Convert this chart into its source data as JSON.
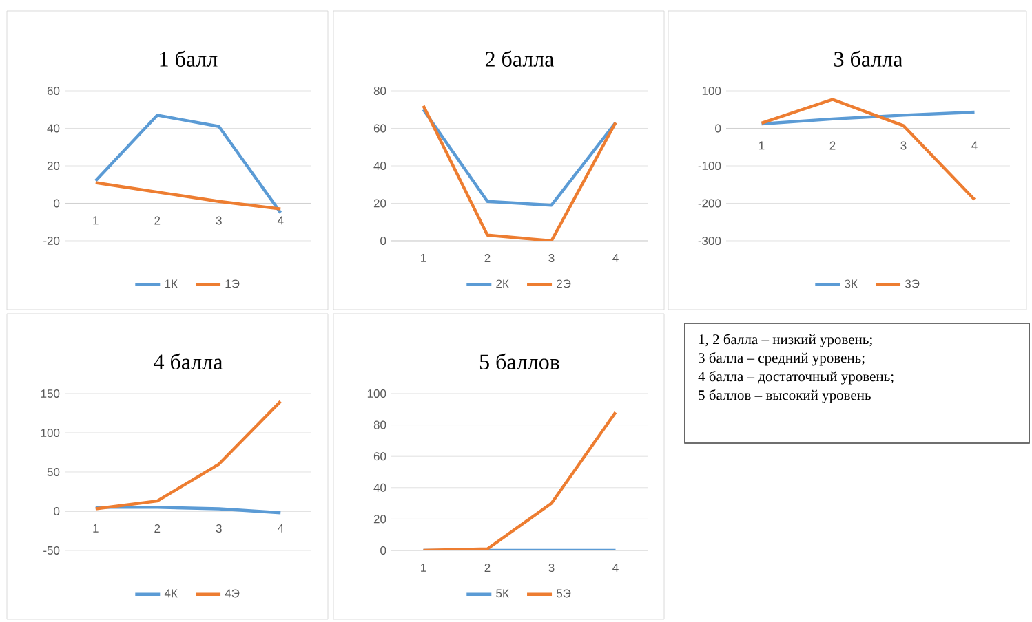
{
  "chart_data": [
    {
      "type": "line",
      "title": "1 балл",
      "categories": [
        "1",
        "2",
        "3",
        "4"
      ],
      "ylim": [
        -20,
        60
      ],
      "yticks": [
        -20,
        0,
        20,
        40,
        60
      ],
      "grid": "y",
      "legend": "bottom",
      "line_style": "solid",
      "series": [
        {
          "name": "1К",
          "color": "#5b9bd5",
          "values": [
            12,
            47,
            41,
            -5
          ]
        },
        {
          "name": "1Э",
          "color": "#ed7d31",
          "values": [
            11,
            6,
            1,
            -3
          ]
        }
      ]
    },
    {
      "type": "line",
      "title": "2 балла",
      "categories": [
        "1",
        "2",
        "3",
        "4"
      ],
      "ylim": [
        0,
        80
      ],
      "yticks": [
        0,
        20,
        40,
        60,
        80
      ],
      "grid": "y",
      "legend": "bottom",
      "line_style": "solid",
      "series": [
        {
          "name": "2К",
          "color": "#5b9bd5",
          "values": [
            70,
            21,
            19,
            63
          ]
        },
        {
          "name": "2Э",
          "color": "#ed7d31",
          "values": [
            72,
            3,
            0,
            63
          ]
        }
      ]
    },
    {
      "type": "line",
      "title": "3 балла",
      "categories": [
        "1",
        "2",
        "3",
        "4"
      ],
      "ylim": [
        -300,
        100
      ],
      "yticks": [
        -300,
        -200,
        -100,
        0,
        100
      ],
      "grid": "y",
      "legend": "bottom",
      "line_style": "solid",
      "series": [
        {
          "name": "3К",
          "color": "#5b9bd5",
          "values": [
            12,
            25,
            35,
            43
          ]
        },
        {
          "name": "3Э",
          "color": "#ed7d31",
          "values": [
            14,
            77,
            7,
            -190
          ]
        }
      ]
    },
    {
      "type": "line",
      "title": "4 балла",
      "categories": [
        "1",
        "2",
        "3",
        "4"
      ],
      "ylim": [
        -50,
        150
      ],
      "yticks": [
        -50,
        0,
        50,
        100,
        150
      ],
      "grid": "y",
      "legend": "bottom",
      "line_style": "solid",
      "series": [
        {
          "name": "4К",
          "color": "#5b9bd5",
          "values": [
            5,
            5,
            3,
            -2
          ]
        },
        {
          "name": "4Э",
          "color": "#ed7d31",
          "values": [
            3,
            13,
            60,
            140
          ]
        }
      ]
    },
    {
      "type": "line",
      "title": "5 баллов",
      "categories": [
        "1",
        "2",
        "3",
        "4"
      ],
      "ylim": [
        0,
        100
      ],
      "yticks": [
        0,
        20,
        40,
        60,
        80,
        100
      ],
      "grid": "y",
      "legend": "bottom",
      "line_style": "solid",
      "series": [
        {
          "name": "5К",
          "color": "#5b9bd5",
          "values": [
            0,
            0,
            0,
            0
          ]
        },
        {
          "name": "5Э",
          "color": "#ed7d31",
          "values": [
            0,
            1,
            30,
            88
          ]
        }
      ]
    },
    {
      "type": "other",
      "annotations": [
        "1, 2 балла – низкий уровень;",
        "3 балла – средний уровень;",
        "4 балла – достаточный уровень;",
        "5 баллов – высокий уровень"
      ]
    }
  ]
}
